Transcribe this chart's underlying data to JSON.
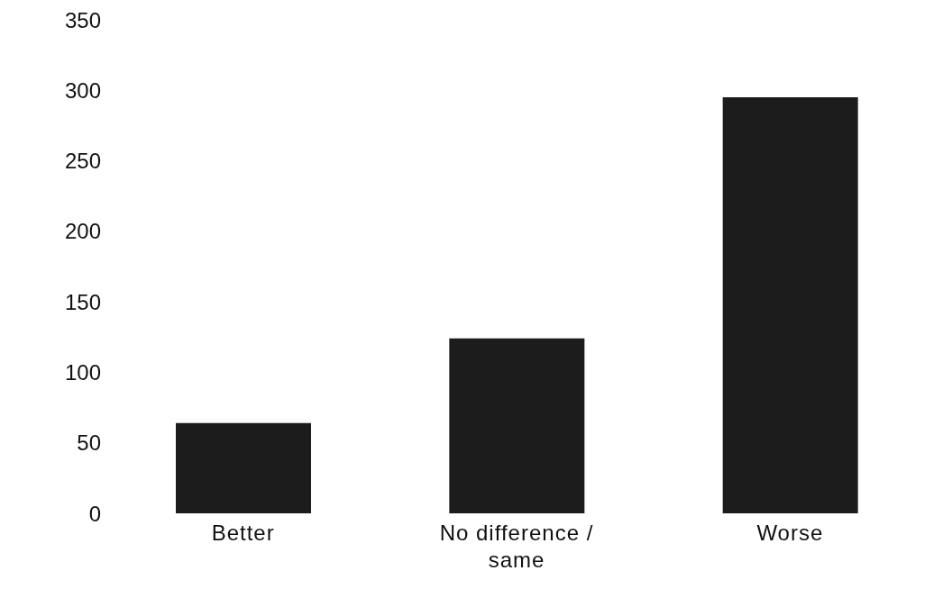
{
  "chart_data": {
    "type": "bar",
    "categories": [
      "Better",
      "No difference / same",
      "Worse"
    ],
    "values": [
      64,
      124,
      295
    ],
    "color": "#1c1c1c",
    "ylim": [
      0,
      350
    ],
    "yticks": [
      0,
      50,
      100,
      150,
      200,
      250,
      300,
      350
    ],
    "grid": false,
    "legend": false
  }
}
